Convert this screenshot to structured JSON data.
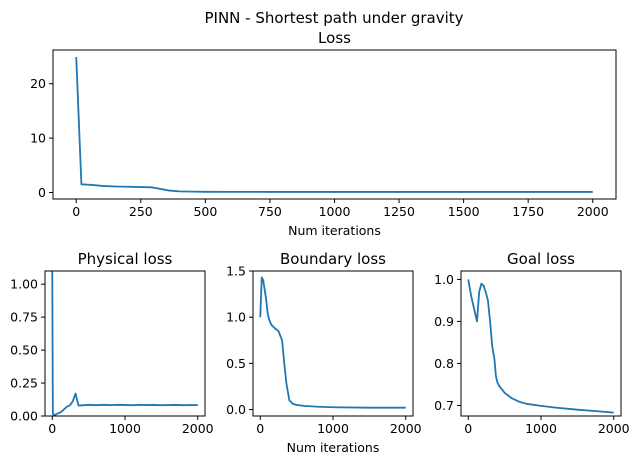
{
  "suptitle": "PINN - Shortest path under gravity",
  "chart_data": [
    {
      "type": "line",
      "title": "Loss",
      "xlabel": "Num iterations",
      "ylabel": "",
      "xlim": [
        -90,
        2090
      ],
      "ylim": [
        -1.2,
        26.2
      ],
      "xticks": [
        0,
        250,
        500,
        750,
        1000,
        1250,
        1500,
        1750,
        2000
      ],
      "xtick_labels": [
        "0",
        "250",
        "500",
        "750",
        "1000",
        "1250",
        "1500",
        "1750",
        "2000"
      ],
      "yticks": [
        0,
        10,
        20
      ],
      "ytick_labels": [
        "0",
        "10",
        "20"
      ],
      "x": [
        0,
        20,
        60,
        100,
        150,
        200,
        250,
        290,
        320,
        360,
        400,
        450,
        500,
        600,
        800,
        1000,
        1500,
        2000
      ],
      "y": [
        24.9,
        1.5,
        1.4,
        1.2,
        1.1,
        1.05,
        1.0,
        0.95,
        0.7,
        0.35,
        0.2,
        0.15,
        0.12,
        0.11,
        0.1,
        0.1,
        0.1,
        0.1
      ]
    },
    {
      "type": "line",
      "title": "Physical loss",
      "xlabel": "",
      "ylabel": "",
      "xlim": [
        -100,
        2100
      ],
      "ylim": [
        0,
        1.1
      ],
      "xticks": [
        0,
        1000,
        2000
      ],
      "xtick_labels": [
        "0",
        "1000",
        "2000"
      ],
      "yticks": [
        0,
        0.25,
        0.5,
        0.75,
        1.0
      ],
      "ytick_labels": [
        "0.00",
        "0.25",
        "0.50",
        "0.75",
        "1.00"
      ],
      "x": [
        0,
        8,
        16,
        40,
        80,
        120,
        160,
        200,
        240,
        280,
        300,
        320,
        360,
        400,
        500,
        600,
        700,
        800,
        900,
        1000,
        1100,
        1200,
        1300,
        1400,
        1500,
        1600,
        1700,
        1800,
        1900,
        2000
      ],
      "y": [
        1.1,
        0.02,
        0.01,
        0.01,
        0.02,
        0.03,
        0.05,
        0.07,
        0.08,
        0.11,
        0.14,
        0.17,
        0.08,
        0.08,
        0.085,
        0.082,
        0.085,
        0.083,
        0.085,
        0.084,
        0.082,
        0.085,
        0.083,
        0.084,
        0.082,
        0.083,
        0.084,
        0.082,
        0.083,
        0.083
      ]
    },
    {
      "type": "line",
      "title": "Boundary loss",
      "xlabel": "Num iterations",
      "ylabel": "",
      "xlim": [
        -100,
        2100
      ],
      "ylim": [
        -0.07,
        1.5
      ],
      "xticks": [
        0,
        1000,
        2000
      ],
      "xtick_labels": [
        "0",
        "1000",
        "2000"
      ],
      "yticks": [
        0,
        0.5,
        1.0,
        1.5
      ],
      "ytick_labels": [
        "0.0",
        "0.5",
        "1.0",
        "1.5"
      ],
      "x": [
        0,
        20,
        40,
        60,
        80,
        100,
        120,
        150,
        200,
        250,
        300,
        330,
        360,
        400,
        450,
        500,
        600,
        800,
        1000,
        1500,
        2000
      ],
      "y": [
        1.0,
        1.43,
        1.4,
        1.3,
        1.2,
        1.05,
        0.98,
        0.92,
        0.88,
        0.85,
        0.75,
        0.5,
        0.28,
        0.1,
        0.06,
        0.05,
        0.04,
        0.03,
        0.025,
        0.02,
        0.02
      ]
    },
    {
      "type": "line",
      "title": "Goal loss",
      "xlabel": "",
      "ylabel": "",
      "xlim": [
        -100,
        2100
      ],
      "ylim": [
        0.675,
        1.02
      ],
      "xticks": [
        0,
        1000,
        2000
      ],
      "xtick_labels": [
        "0",
        "1000",
        "2000"
      ],
      "yticks": [
        0.7,
        0.8,
        0.9,
        1.0
      ],
      "ytick_labels": [
        "0.7",
        "0.8",
        "0.9",
        "1.0"
      ],
      "x": [
        0,
        40,
        80,
        120,
        150,
        180,
        210,
        240,
        270,
        300,
        330,
        360,
        380,
        400,
        430,
        470,
        500,
        600,
        700,
        800,
        1000,
        1200,
        1500,
        1800,
        2000
      ],
      "y": [
        1.0,
        0.96,
        0.93,
        0.9,
        0.97,
        0.99,
        0.985,
        0.97,
        0.95,
        0.9,
        0.84,
        0.81,
        0.77,
        0.755,
        0.745,
        0.737,
        0.73,
        0.717,
        0.709,
        0.704,
        0.699,
        0.695,
        0.69,
        0.686,
        0.683
      ]
    }
  ]
}
